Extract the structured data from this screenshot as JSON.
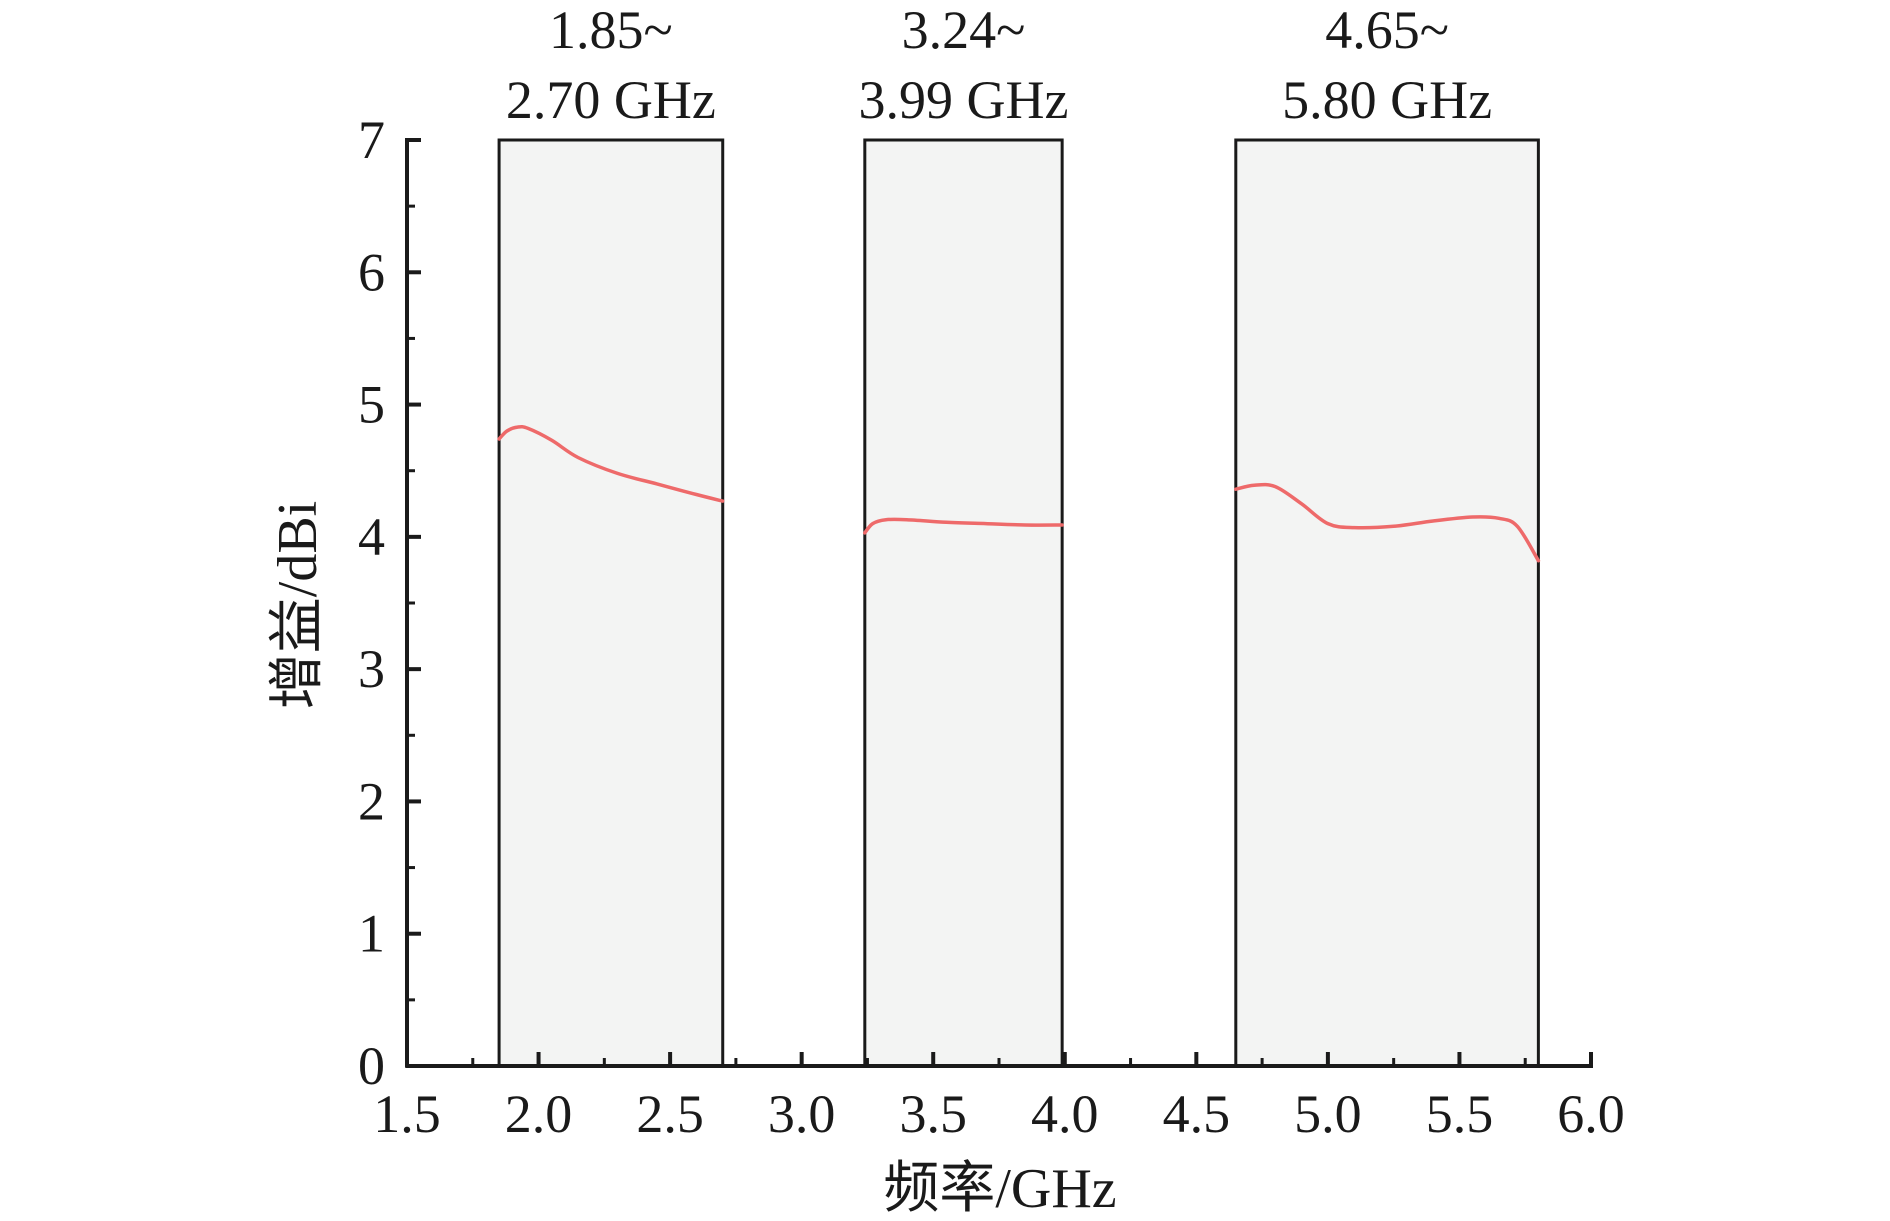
{
  "chart_data": {
    "type": "line",
    "title": "",
    "xlabel": "频率/GHz",
    "ylabel": "增益/dBi",
    "xlim": [
      1.5,
      6.0
    ],
    "ylim": [
      0,
      7
    ],
    "x_ticks": [
      "1.5",
      "2.0",
      "2.5",
      "3.0",
      "3.5",
      "4.0",
      "4.5",
      "5.0",
      "5.5",
      "6.0"
    ],
    "y_ticks": [
      "0",
      "1",
      "2",
      "3",
      "4",
      "5",
      "6",
      "7"
    ],
    "grid": false,
    "legend": "none",
    "bands": [
      {
        "x_start": 1.85,
        "x_end": 2.7,
        "label_line1": "1.85~",
        "label_line2": "2.70 GHz"
      },
      {
        "x_start": 3.24,
        "x_end": 3.99,
        "label_line1": "3.24~",
        "label_line2": "3.99 GHz"
      },
      {
        "x_start": 4.65,
        "x_end": 5.8,
        "label_line1": "4.65~",
        "label_line2": "5.80 GHz"
      }
    ],
    "series": [
      {
        "color": "#ee6a6a",
        "segments": [
          {
            "x": [
              1.85,
              1.88,
              1.92,
              1.96,
              2.05,
              2.15,
              2.3,
              2.45,
              2.6,
              2.7
            ],
            "y": [
              4.74,
              4.8,
              4.83,
              4.82,
              4.73,
              4.6,
              4.48,
              4.4,
              4.32,
              4.27
            ]
          },
          {
            "x": [
              3.24,
              3.27,
              3.32,
              3.4,
              3.55,
              3.7,
              3.85,
              3.99
            ],
            "y": [
              4.03,
              4.1,
              4.13,
              4.13,
              4.11,
              4.1,
              4.09,
              4.09
            ]
          },
          {
            "x": [
              4.65,
              4.72,
              4.8,
              4.9,
              5.0,
              5.1,
              5.25,
              5.4,
              5.55,
              5.65,
              5.72,
              5.8
            ],
            "y": [
              4.36,
              4.39,
              4.38,
              4.25,
              4.1,
              4.07,
              4.08,
              4.12,
              4.15,
              4.14,
              4.08,
              3.82
            ]
          }
        ]
      }
    ]
  },
  "colors": {
    "band_fill": "#f3f4f3",
    "axis": "#1a1a1a",
    "line": "#ee6a6a"
  }
}
